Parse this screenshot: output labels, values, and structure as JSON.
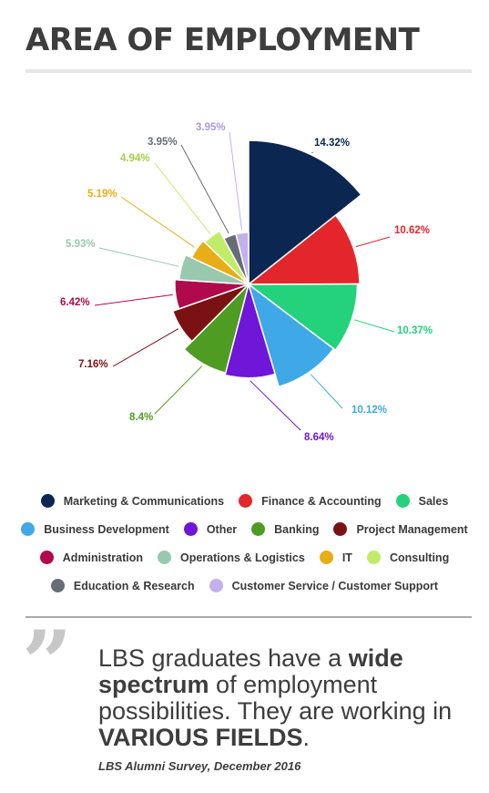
{
  "title": "AREA OF EMPLOYMENT",
  "chart_data": {
    "type": "pie",
    "title": "",
    "slices": [
      {
        "label": "Marketing & Communications",
        "value": 14.32,
        "value_label": "14.32%",
        "color": "#0b2650"
      },
      {
        "label": "Finance & Accounting",
        "value": 10.62,
        "value_label": "10.62%",
        "color": "#e3262b"
      },
      {
        "label": "Sales",
        "value": 10.37,
        "value_label": "10.37%",
        "color": "#23d27a"
      },
      {
        "label": "Business Development",
        "value": 10.12,
        "value_label": "10.12%",
        "color": "#3ea9e6"
      },
      {
        "label": "Other",
        "value": 8.64,
        "value_label": "8.64%",
        "color": "#7016d8"
      },
      {
        "label": "Banking",
        "value": 8.4,
        "value_label": "8.4%",
        "color": "#4e9c22"
      },
      {
        "label": "Project Management",
        "value": 7.16,
        "value_label": "7.16%",
        "color": "#7a1112"
      },
      {
        "label": "Administration",
        "value": 6.42,
        "value_label": "6.42%",
        "color": "#b0094c"
      },
      {
        "label": "Operations & Logistics",
        "value": 5.93,
        "value_label": "5.93%",
        "color": "#98c8ad"
      },
      {
        "label": "IT",
        "value": 5.19,
        "value_label": "5.19%",
        "color": "#e8ae17"
      },
      {
        "label": "Consulting",
        "value": 4.94,
        "value_label": "4.94%",
        "color": "#c1ec6a"
      },
      {
        "label": "Education & Research",
        "value": 3.95,
        "value_label": "3.95%",
        "color": "#676d73"
      },
      {
        "label": "Customer Service / Customer Support",
        "value": 3.95,
        "value_label": "3.95%",
        "color": "#c5b0ee"
      }
    ],
    "legend_position": "bottom",
    "variable_radius": true
  },
  "legend_rows": [
    [
      0,
      1,
      2
    ],
    [
      3,
      4,
      5,
      6
    ],
    [
      7,
      8,
      9,
      10
    ],
    [
      11,
      12
    ]
  ],
  "quote": {
    "part1": "LBS graduates have a ",
    "bold1": "wide spectrum",
    "part2": " of employment possibilities. They are working in ",
    "bold2": "VARIOUS FIELDS",
    "part3": "."
  },
  "source": "LBS Alumni Survey, December 2016"
}
